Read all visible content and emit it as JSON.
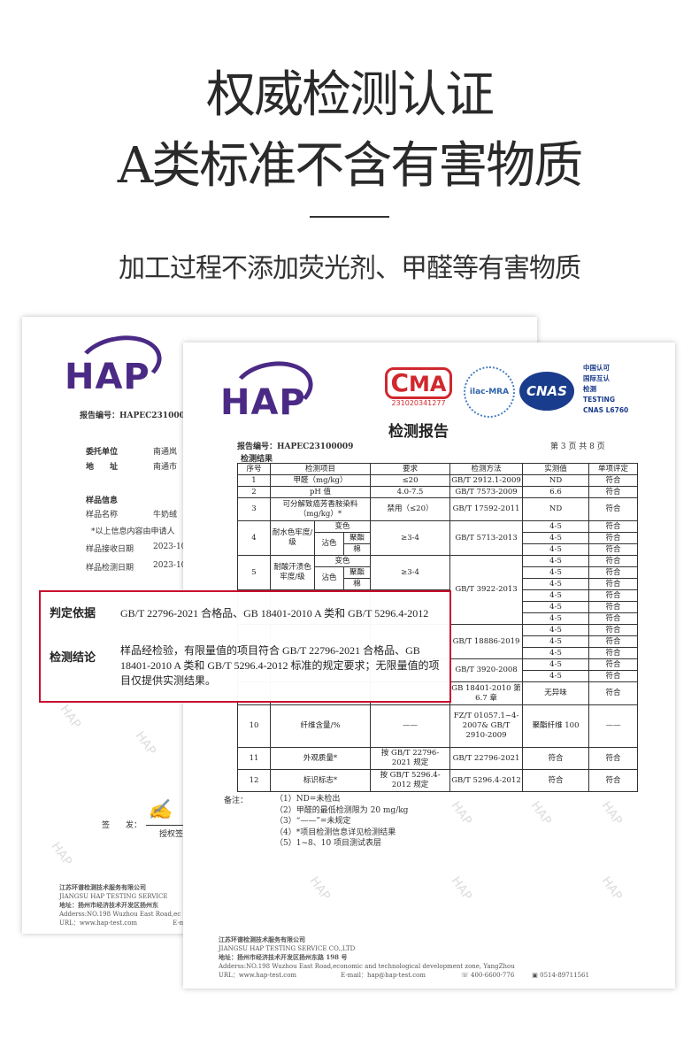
{
  "headline": {
    "line1": "权威检测认证",
    "line2": "A类标准不含有害物质",
    "subtitle": "加工过程不添加荧光剂、甲醛等有害物质"
  },
  "colors": {
    "accent": "#c8102e",
    "hap_purple": "#4b2a86",
    "cma_red": "#d0282e",
    "cnas_blue": "#1a3c8c"
  },
  "watermark": "HAP",
  "back_doc": {
    "logo": "HAP",
    "report_no": "报告编号：HAPEC231000",
    "client_label": "委托单位",
    "client_value": "南通岚",
    "address_label": "地　　址",
    "address_value": "南通市",
    "sample_info": "样品信息",
    "sample_name_label": "样品名称",
    "sample_name_value": "牛奶绒",
    "note": "*以上信息内容由申请人",
    "received_label": "样品接收日期",
    "received_value": "2023-10",
    "tested_label": "样品检测日期",
    "tested_value": "2023-10",
    "sign_label": "签　　发：",
    "authorized": "授权签",
    "footer": {
      "cn": "江苏环谱检测技术服务有限公司",
      "en": "JIANGSU HAP TESTING SERVICE",
      "addr": "地址：扬州市经济技术开发区扬州东",
      "addr_en": "Adderss:NO.198 Wuzhou East Road,ec",
      "url": "URL：www.hap-test.com",
      "email": "E-m"
    }
  },
  "front_doc": {
    "logo": "HAP",
    "cma": {
      "text": "MA",
      "number": "231020341277"
    },
    "ilac": "ilac-MRA",
    "cnas": {
      "logo": "CNAS",
      "lines": [
        "中国认可",
        "国际互认",
        "检测",
        "TESTING",
        "CNAS L6760"
      ]
    },
    "title": "检测报告",
    "report_no": "报告编号：HAPEC23100009",
    "page": "第 3 页 共 8 页",
    "section": "检测结果",
    "table": {
      "header": [
        "序号",
        "检测项目",
        "要求",
        "检测方法",
        "实测值",
        "单项评定"
      ],
      "rows": [
        {
          "no": "1",
          "item": "甲醛（mg/kg）",
          "req": "≤20",
          "method": "GB/T 2912.1-2009",
          "value": "ND",
          "verdict": "符合"
        },
        {
          "no": "2",
          "item": "pH 值",
          "req": "4.0-7.5",
          "method": "GB/T 7573-2009",
          "value": "6.6",
          "verdict": "符合"
        },
        {
          "no": "3",
          "item": "可分解致癌芳香胺染料（mg/kg）*",
          "req": "禁用（≤20）",
          "method": "GB/T 17592-2011",
          "value": "ND",
          "verdict": "符合"
        },
        {
          "no": "4",
          "item": "耐水色牢度/级",
          "change": "变色",
          "stain": "沾色",
          "fiber1": "聚酯",
          "fiber2": "棉",
          "req": "≥3-4",
          "method": "GB/T 5713-2013"
        },
        {
          "no": "5",
          "item": "耐酸汗渍色牢度/级",
          "change": "变色",
          "stain": "沾色",
          "fiber1": "聚酯",
          "fiber2": "棉",
          "req": "≥3-4",
          "method": "GB/T 3922-2013"
        },
        {
          "method": "GB/T 18886-2019"
        },
        {
          "method": "GB/T 3920-2008"
        },
        {
          "method": "GB 18401-2010 第 6.7 章",
          "value": "无异味",
          "verdict": "符合"
        },
        {
          "no": "10",
          "item": "纤维含量/%",
          "req": "——",
          "method": "FZ/T 01057.1~4-2007& GB/T 2910-2009",
          "value": "聚酯纤维 100",
          "verdict": "——"
        },
        {
          "no": "11",
          "item": "外观质量*",
          "req": "按 GB/T 22796-2021 规定",
          "method": "GB/T 22796-2021",
          "value": "符合",
          "verdict": "符合"
        },
        {
          "no": "12",
          "item": "标识标志*",
          "req": "按 GB/T 5296.4-2012 规定",
          "method": "GB/T 5296.4-2012",
          "value": "符合",
          "verdict": "符合"
        }
      ],
      "fastness_values": [
        "4-5",
        "4-5",
        "4-5",
        "4-5",
        "4-5",
        "4-5",
        "4-5",
        "4-5",
        "4-5",
        "4-5",
        "4-5",
        "4-5",
        "4-5",
        "4-5"
      ],
      "fastness_verdicts": [
        "符合",
        "符合",
        "符合",
        "符合",
        "符合",
        "符合",
        "符合",
        "符合",
        "符合",
        "符合",
        "符合",
        "符合",
        "符合",
        "符合"
      ]
    },
    "notes_label": "备注：",
    "notes": [
      "（1）ND=未检出",
      "（2）甲醛的最低检测限为 20 mg/kg",
      "（3）“——”=未规定",
      "（4）*项目检测信息详见检测结果",
      "（5）1~8、10 项目测试表层"
    ],
    "footer": {
      "cn": "江苏环谱检测技术服务有限公司",
      "en": "JIANGSU HAP TESTING SERVICE CO.,LTD",
      "addr": "地址：扬州市经济技术开发区扬州东路 198 号",
      "addr_en": "Adderss:NO.198 Wuzhou East Road,economic and technological development zone, YangZhou",
      "url": "URL：www.hap-test.com",
      "email": "E-mail：hap@hap-test.com",
      "phone": "400-6600-776",
      "fax": "0514-89711561"
    }
  },
  "conclusion_box": {
    "basis_label": "判定依据",
    "basis_text": "GB/T 22796-2021 合格品、GB 18401-2010 A 类和 GB/T 5296.4-2012",
    "conclusion_label": "检测结论",
    "conclusion_text": "样品经检验，有限量值的项目符合 GB/T 22796-2021 合格品、GB 18401-2010 A 类和 GB/T 5296.4-2012 标准的规定要求；无限量值的项目仅提供实测结果。"
  }
}
